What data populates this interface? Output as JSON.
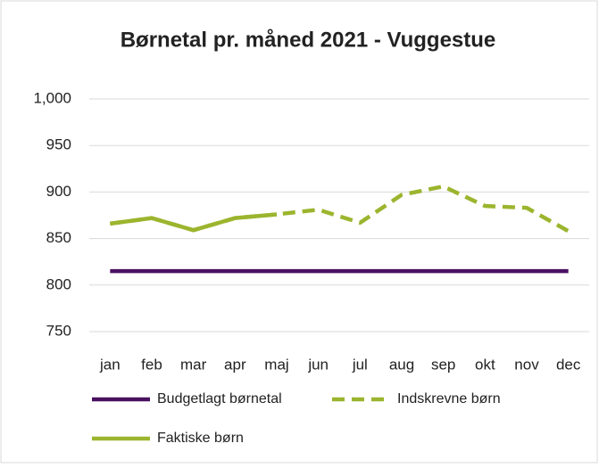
{
  "chart_data": {
    "type": "line",
    "title": "Børnetal pr. måned 2021 - Vuggestue",
    "categories": [
      "jan",
      "feb",
      "mar",
      "apr",
      "maj",
      "jun",
      "jul",
      "aug",
      "sep",
      "okt",
      "nov",
      "dec"
    ],
    "series": [
      {
        "name": "Budgetlagt børnetal",
        "color": "#4a1160",
        "style": "solid",
        "values": [
          815,
          815,
          815,
          815,
          815,
          815,
          815,
          815,
          815,
          815,
          815,
          815
        ]
      },
      {
        "name": "Indskrevne børn",
        "color": "#9bb52e",
        "style": "dashed",
        "values": [
          866,
          872,
          859,
          872,
          876,
          881,
          867,
          897,
          906,
          885,
          883,
          858
        ]
      },
      {
        "name": "Faktiske børn",
        "color": "#9bb52e",
        "style": "solid",
        "values": [
          866,
          872,
          859,
          872,
          876,
          null,
          null,
          null,
          null,
          null,
          null,
          null
        ]
      }
    ],
    "ylim": [
      750,
      1000
    ],
    "yticks": [
      750,
      800,
      850,
      900,
      950,
      {
        "value": 1000,
        "label": "1,000"
      }
    ],
    "grid": true,
    "legend": "bottom"
  }
}
